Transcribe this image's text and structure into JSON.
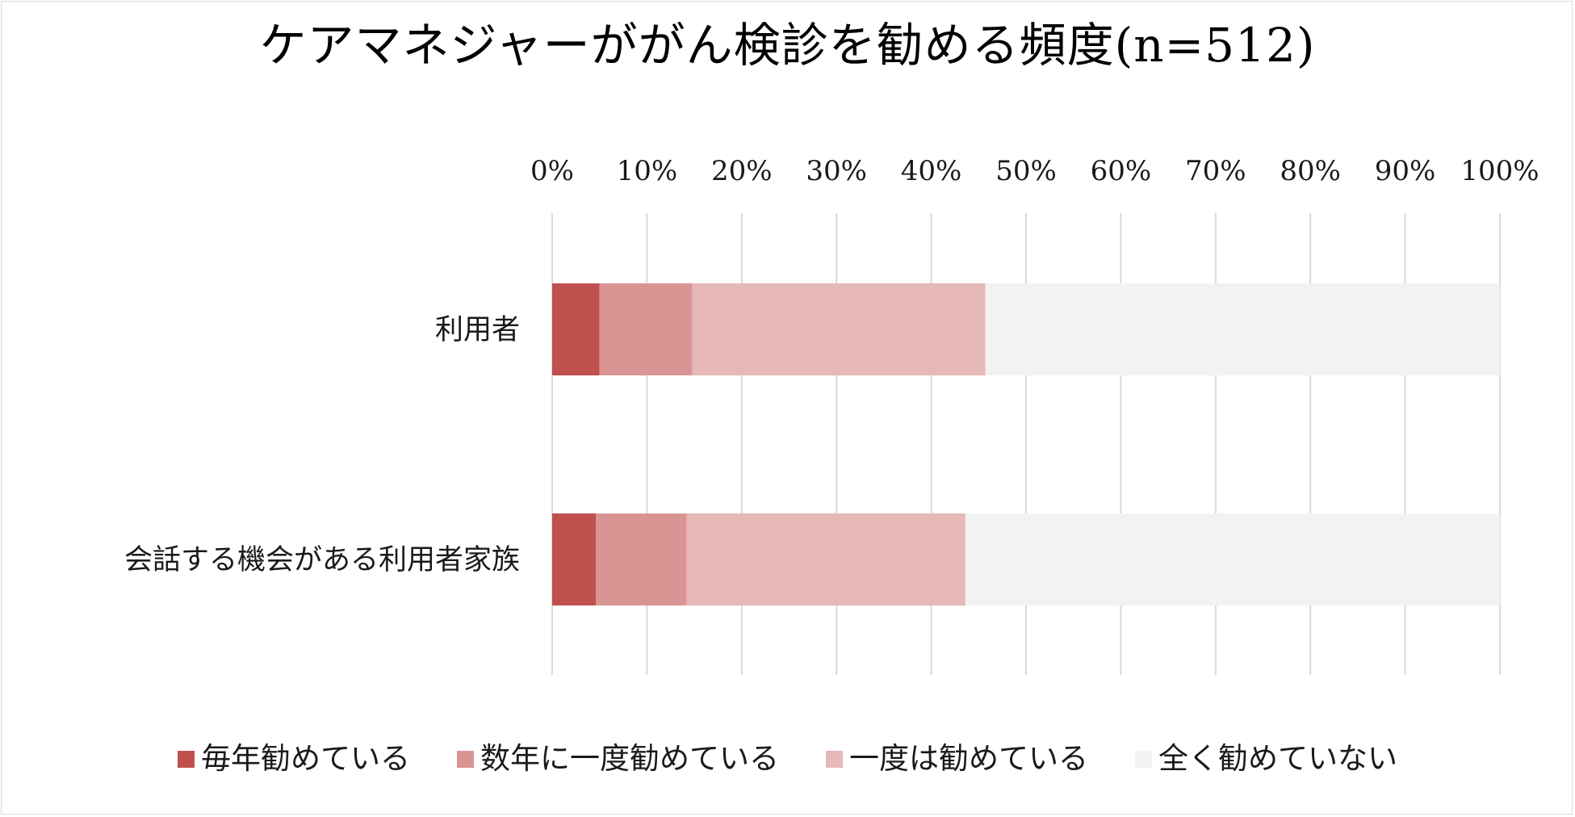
{
  "chart_data": {
    "type": "bar",
    "orientation": "horizontal",
    "stacked": true,
    "percent_stacked": true,
    "title": "ケアマネジャーががん検診を勧める頻度(n=512)",
    "xlabel": "",
    "ylabel": "",
    "xlim": [
      0,
      100
    ],
    "x_ticks": [
      "0%",
      "10%",
      "20%",
      "30%",
      "40%",
      "50%",
      "60%",
      "70%",
      "80%",
      "90%",
      "100%"
    ],
    "x_axis_position": "top",
    "grid": true,
    "legend_position": "bottom",
    "categories": [
      "利用者",
      "会話する機会がある利用者家族"
    ],
    "series": [
      {
        "name": "毎年勧めている",
        "color": "#c0504d",
        "values": [
          5.0,
          4.6
        ]
      },
      {
        "name": "数年に一度勧めている",
        "color": "#d99594",
        "values": [
          9.8,
          9.6
        ]
      },
      {
        "name": "一度は勧めている",
        "color": "#e6b8b7",
        "values": [
          30.9,
          29.4
        ]
      },
      {
        "name": "全く勧めていない",
        "color": "#f2f2f2",
        "values": [
          54.3,
          56.4
        ]
      }
    ]
  }
}
